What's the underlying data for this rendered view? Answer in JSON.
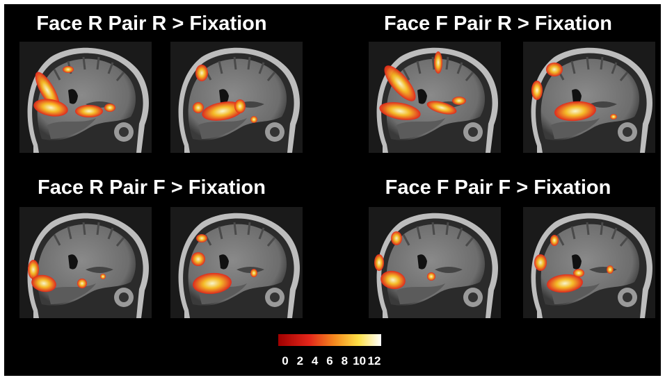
{
  "panels": [
    {
      "title": "Face R Pair R > Fixation"
    },
    {
      "title": "Face F Pair R > Fixation"
    },
    {
      "title": "Face R Pair F > Fixation"
    },
    {
      "title": "Face F Pair F > Fixation"
    }
  ],
  "colorbar": {
    "range": [
      0,
      12
    ],
    "ticks": [
      0,
      2,
      4,
      6,
      8,
      10,
      12
    ]
  }
}
